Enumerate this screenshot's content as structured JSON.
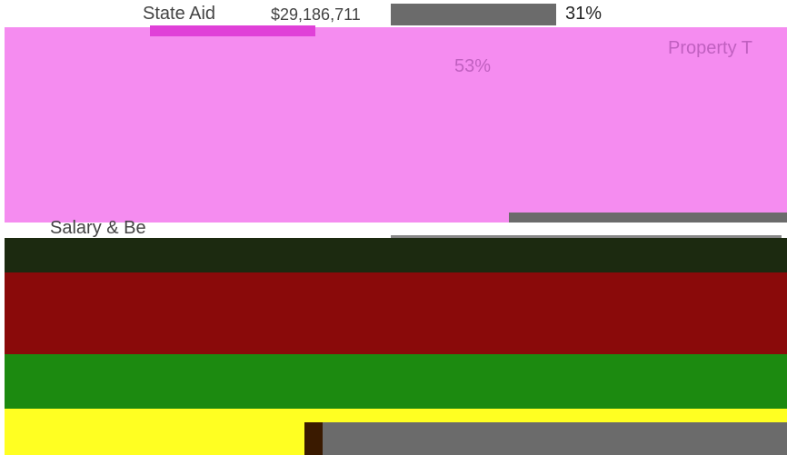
{
  "rows": [
    {
      "label": "State Aid",
      "amount": "$29,186,711",
      "percent": "31%"
    },
    {
      "label": "Property T",
      "percent": "53%"
    },
    {
      "label": "Salary & Be"
    }
  ]
}
